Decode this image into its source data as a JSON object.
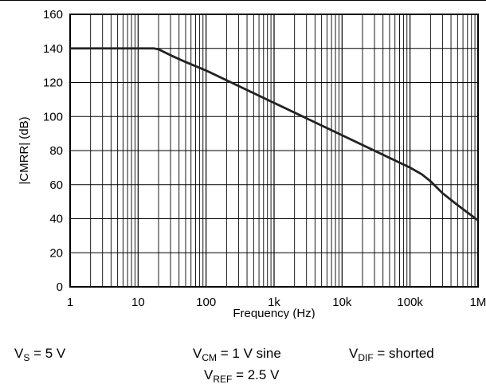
{
  "chart_data": {
    "type": "line",
    "xscale": "log",
    "xlim": [
      1,
      1000000
    ],
    "ylim": [
      0,
      160
    ],
    "xlabel": "Frequency (Hz)",
    "ylabel": "|CMRR| (dB)",
    "xticks": [
      1,
      10,
      100,
      1000,
      10000,
      100000,
      1000000
    ],
    "xtick_labels": [
      "1",
      "10",
      "100",
      "1k",
      "10k",
      "100k",
      "1M"
    ],
    "yticks": [
      0,
      20,
      40,
      60,
      80,
      100,
      120,
      140,
      160
    ],
    "ytick_labels": [
      "0",
      "20",
      "40",
      "60",
      "80",
      "100",
      "120",
      "140",
      "160"
    ],
    "grid": true,
    "series": [
      {
        "color": "#222222",
        "x": [
          1,
          5,
          10,
          17,
          20,
          30,
          50,
          100,
          1000,
          10000,
          100000,
          150000,
          200000,
          300000,
          500000,
          1000000
        ],
        "y": [
          140,
          140,
          140,
          140,
          139.5,
          136,
          132,
          127,
          108,
          89,
          70,
          66,
          62,
          55,
          48,
          39
        ]
      }
    ]
  },
  "conditions": {
    "vs": {
      "main": "V",
      "sub": "S",
      "rest": " = 5 V"
    },
    "vcm": {
      "main": "V",
      "sub": "CM",
      "rest": " = 1 V sine"
    },
    "vdif": {
      "main": "V",
      "sub": "DIF",
      "rest": " = shorted"
    },
    "vref": {
      "main": "V",
      "sub": "REF",
      "rest": " = 2.5 V"
    }
  }
}
